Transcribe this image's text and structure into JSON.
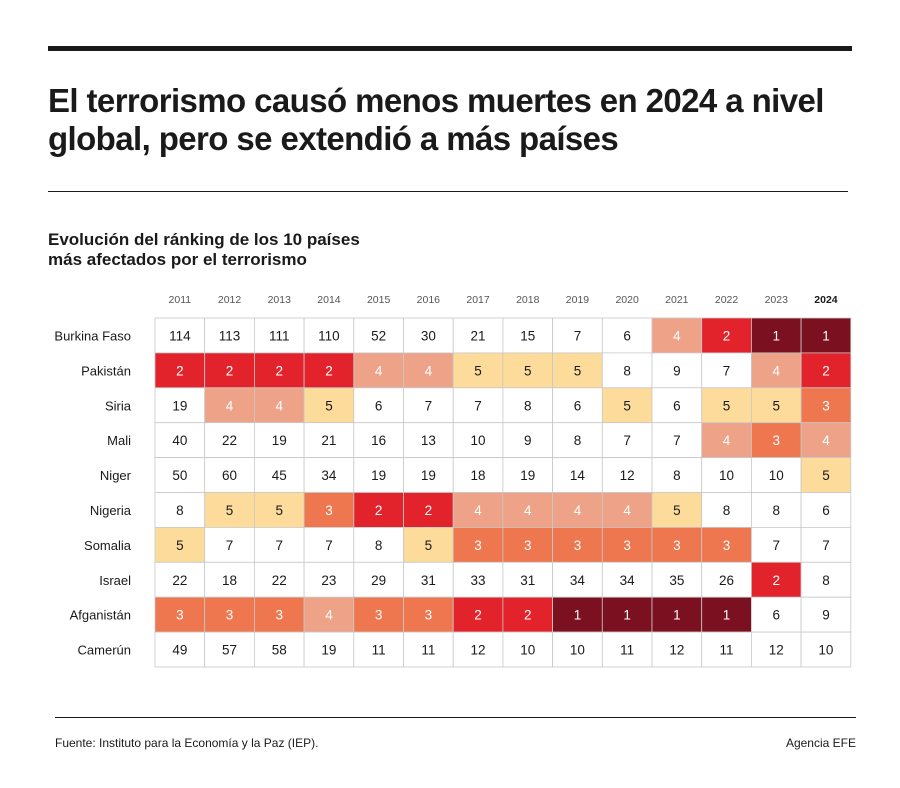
{
  "headline": "El terrorismo causó menos muertes en 2024 a nivel global, pero se extendió a más países",
  "subtitle_lines": [
    "Evolución del ránking de los 10 países",
    "más afectados por el terrorismo"
  ],
  "source": "Fuente: Instituto para la Economía y la Paz (IEP).",
  "credit": "Agencia EFE",
  "colors": {
    "rank_1": "#7b1020",
    "rank_2": "#e3232c",
    "rank_3": "#ee7750",
    "rank_4": "#eea388",
    "rank_5": "#fcdb9b",
    "other": "#ffffff",
    "text_dark": "#1a1a1a",
    "text_light": "#ffffff",
    "grid": "#c8c8c8"
  },
  "chart_data": {
    "type": "heatmap",
    "columns": [
      "2011",
      "2012",
      "2013",
      "2014",
      "2015",
      "2016",
      "2017",
      "2018",
      "2019",
      "2020",
      "2021",
      "2022",
      "2023",
      "2024"
    ],
    "highlight_column": "2024",
    "rows": [
      {
        "country": "Burkina Faso",
        "values": [
          114,
          113,
          111,
          110,
          52,
          30,
          21,
          15,
          7,
          6,
          4,
          2,
          1,
          1
        ]
      },
      {
        "country": "Pakistán",
        "values": [
          2,
          2,
          2,
          2,
          4,
          4,
          5,
          5,
          5,
          8,
          9,
          7,
          4,
          2
        ]
      },
      {
        "country": "Siria",
        "values": [
          19,
          4,
          4,
          5,
          6,
          7,
          7,
          8,
          6,
          5,
          6,
          5,
          5,
          3
        ]
      },
      {
        "country": "Mali",
        "values": [
          40,
          22,
          19,
          21,
          16,
          13,
          10,
          9,
          8,
          7,
          7,
          4,
          3,
          4
        ]
      },
      {
        "country": "Niger",
        "values": [
          50,
          60,
          45,
          34,
          19,
          19,
          18,
          19,
          14,
          12,
          8,
          10,
          10,
          5
        ]
      },
      {
        "country": "Nigeria",
        "values": [
          8,
          5,
          5,
          3,
          2,
          2,
          4,
          4,
          4,
          4,
          5,
          8,
          8,
          6
        ]
      },
      {
        "country": "Somalia",
        "values": [
          5,
          7,
          7,
          7,
          8,
          5,
          3,
          3,
          3,
          3,
          3,
          3,
          7,
          7
        ]
      },
      {
        "country": "Israel",
        "values": [
          22,
          18,
          22,
          23,
          29,
          31,
          33,
          31,
          34,
          34,
          35,
          26,
          2,
          8
        ]
      },
      {
        "country": "Afganistán",
        "values": [
          3,
          3,
          3,
          4,
          3,
          3,
          2,
          2,
          1,
          1,
          1,
          1,
          6,
          9
        ]
      },
      {
        "country": "Camerún",
        "values": [
          49,
          57,
          58,
          19,
          11,
          11,
          12,
          10,
          10,
          11,
          12,
          11,
          12,
          10
        ]
      }
    ]
  }
}
